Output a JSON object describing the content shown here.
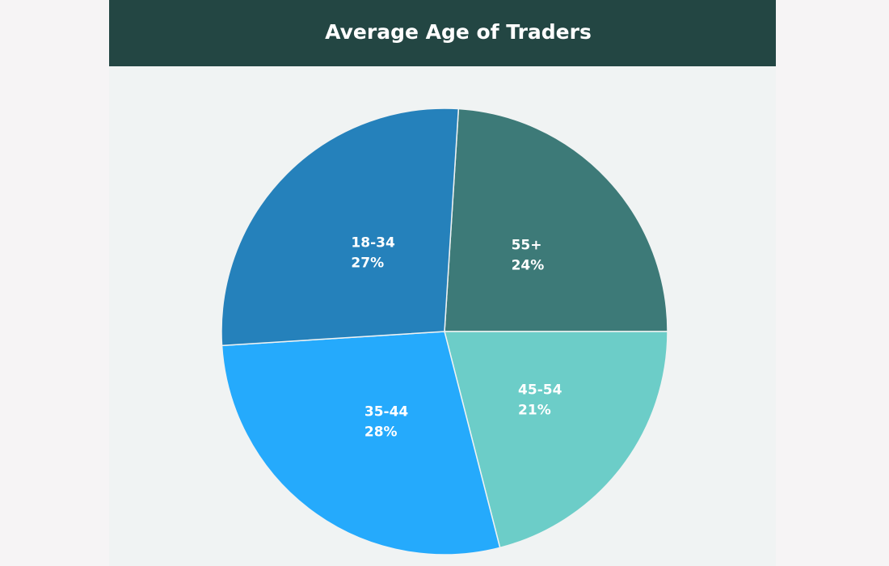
{
  "chart_data": {
    "type": "pie",
    "title": "Average Age of Traders",
    "categories": [
      "55+",
      "45-54",
      "35-44",
      "18-34"
    ],
    "values": [
      24,
      21,
      28,
      27
    ],
    "value_labels": [
      "24%",
      "21%",
      "28%",
      "27%"
    ],
    "colors": [
      "#3d7a78",
      "#6ccdc8",
      "#25aafc",
      "#2581bb"
    ]
  }
}
